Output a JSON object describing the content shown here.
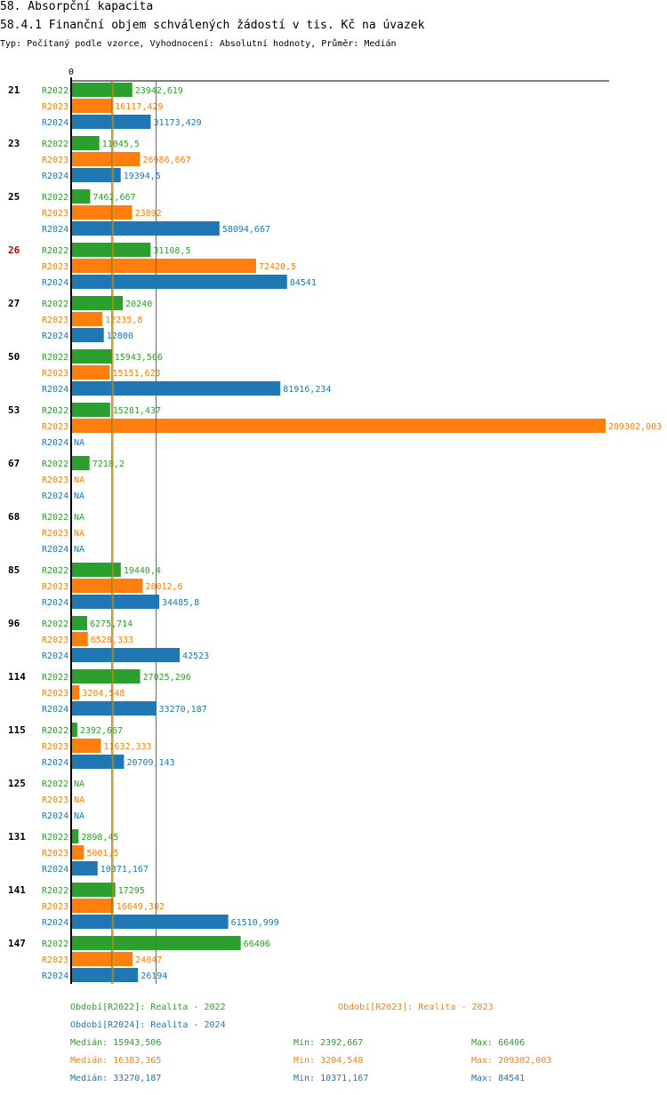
{
  "heading": "58. Absorpční kapacita",
  "chart_title": "58.4.1 Finanční objem schválených žádostí v tis. Kč na úvazek",
  "subtitle": "Typ: Počítaný podle vzorce, Vyhodnocení: Absolutní hodnoty, Průměr: Medián",
  "axis_zero_label": "0",
  "colors": {
    "R2022": "#2ca02c",
    "R2023": "#ff7f0e",
    "R2024": "#1f77b4",
    "highlight_group": "#cc0000"
  },
  "chart_data": {
    "type": "bar",
    "orientation": "horizontal",
    "title": "58.4.1 Finanční objem schválených žádostí v tis. Kč na úvazek",
    "xlim": [
      0,
      213000
    ],
    "highlighted_group": "26",
    "categories": [
      "21",
      "23",
      "25",
      "26",
      "27",
      "50",
      "53",
      "67",
      "68",
      "85",
      "96",
      "114",
      "115",
      "125",
      "131",
      "141",
      "147"
    ],
    "series": [
      {
        "name": "R2022",
        "values": [
          23942.619,
          11045.5,
          7462.667,
          31108.5,
          20240,
          15943.506,
          15281.437,
          7218.2,
          null,
          19440.4,
          6275.714,
          27025.296,
          2392.667,
          null,
          2898.45,
          17295,
          66406
        ],
        "labels": [
          "23942,619",
          "11045,5",
          "7462,667",
          "31108,5",
          "20240",
          "15943,506",
          "15281,437",
          "7218,2",
          "NA",
          "19440,4",
          "6275,714",
          "27025,296",
          "2392,667",
          "NA",
          "2898,45",
          "17295",
          "66406"
        ]
      },
      {
        "name": "R2023",
        "values": [
          16117.429,
          26986.667,
          23892,
          72420.5,
          12235.8,
          15151.623,
          209302.003,
          null,
          null,
          28012.6,
          6528.333,
          3204.548,
          11632.333,
          null,
          5001.5,
          16649.302,
          24047
        ],
        "labels": [
          "16117,429",
          "26986,667",
          "23892",
          "72420,5",
          "12235,8",
          "15151,623",
          "209302,003",
          "NA",
          "NA",
          "28012,6",
          "6528,333",
          "3204,548",
          "11632,333",
          "NA",
          "5001,5",
          "16649,302",
          "24047"
        ]
      },
      {
        "name": "R2024",
        "values": [
          31173.429,
          19394.5,
          58094.667,
          84541,
          12800,
          81916.234,
          null,
          null,
          null,
          34485.8,
          42523,
          33270.187,
          20709.143,
          null,
          10371.167,
          61510.999,
          26194
        ],
        "labels": [
          "31173,429",
          "19394,5",
          "58094,667",
          "84541",
          "12800",
          "81916,234",
          "NA",
          "NA",
          "NA",
          "34485,8",
          "42523",
          "33270,187",
          "20709,143",
          "NA",
          "10371,167",
          "61510,999",
          "26194"
        ]
      }
    ],
    "median_lines": {
      "R2022": 15943.506,
      "R2023": 16383.365,
      "R2024": 33270.187
    }
  },
  "legend": {
    "periods": [
      {
        "key": "R2022",
        "text": "Období[R2022]: Realita - 2022"
      },
      {
        "key": "R2023",
        "text": "Období[R2023]: Realita - 2023"
      },
      {
        "key": "R2024",
        "text": "Období[R2024]: Realita - 2024"
      }
    ],
    "stats": [
      {
        "key": "R2022",
        "median": "Medián: 15943,506",
        "min": "Min: 2392,667",
        "max": "Max: 66406"
      },
      {
        "key": "R2023",
        "median": "Medián: 16383,365",
        "min": "Min: 3204,548",
        "max": "Max: 209302,003"
      },
      {
        "key": "R2024",
        "median": "Medián: 33270,187",
        "min": "Min: 10371,167",
        "max": "Max: 84541"
      }
    ]
  }
}
